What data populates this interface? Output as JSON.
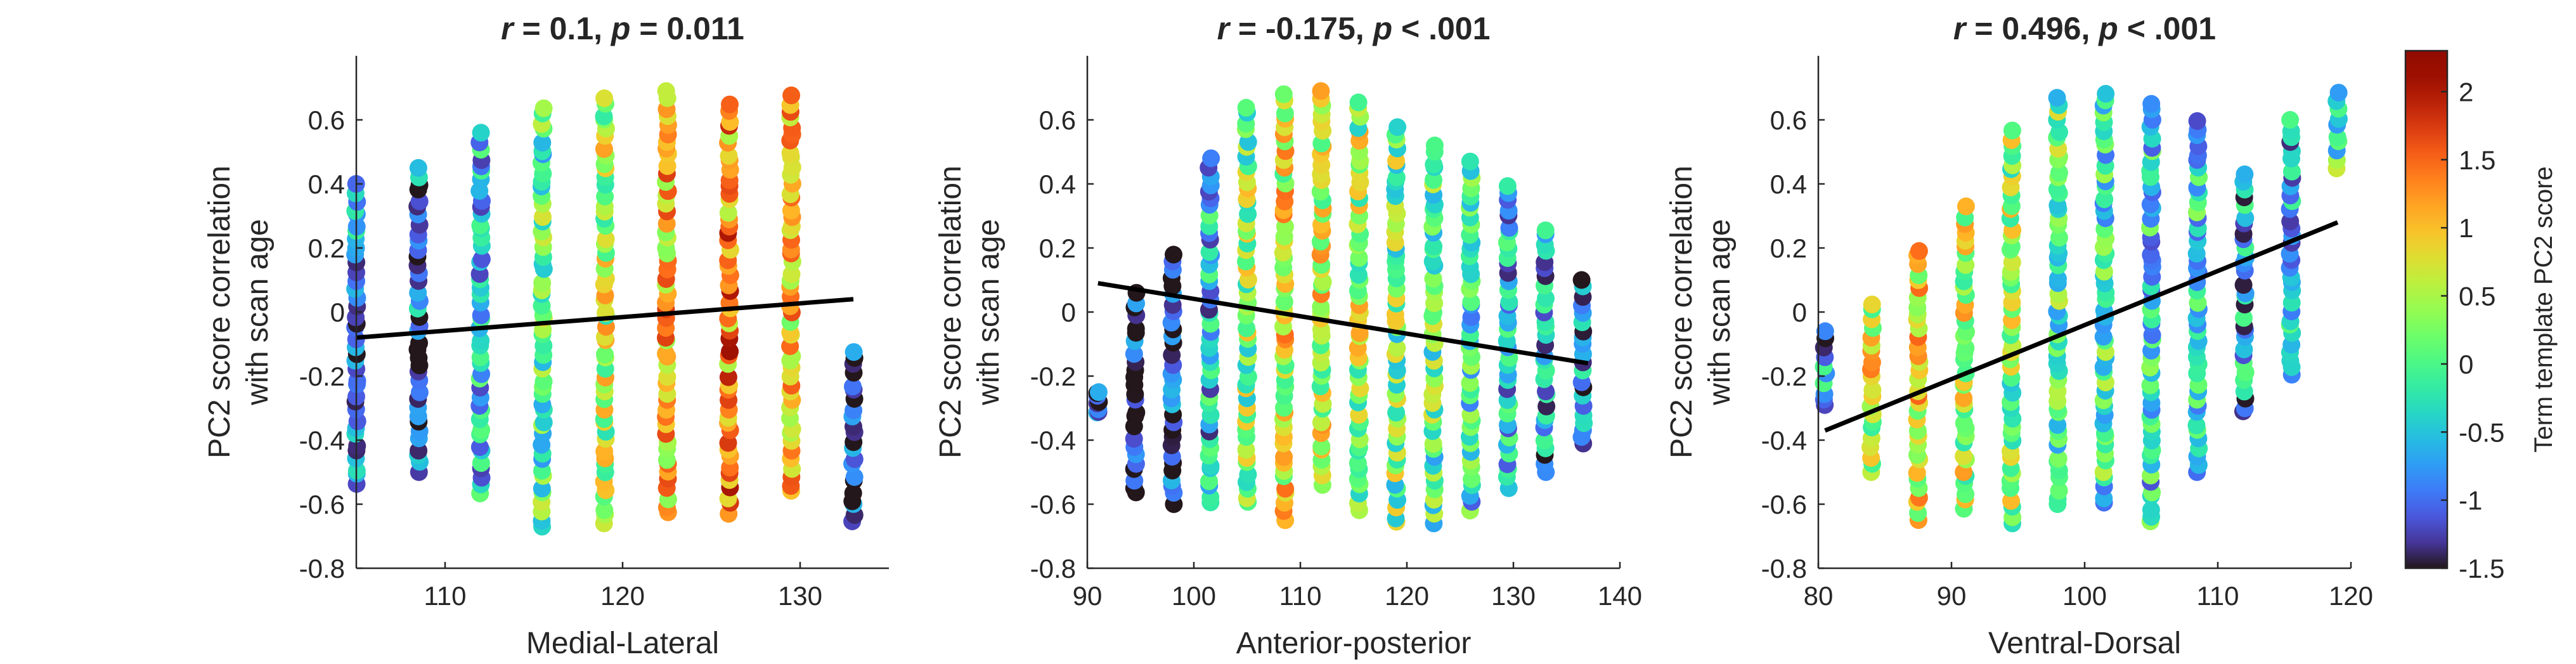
{
  "chart_data": [
    {
      "type": "scatter",
      "title_parts": [
        "r",
        " = 0.1, ",
        "p",
        " = 0.011"
      ],
      "xlabel": "Medial-Lateral",
      "ylabel": [
        "PC2 score correlation",
        "with scan age"
      ],
      "xlim": [
        105,
        135
      ],
      "ylim": [
        -0.8,
        0.8
      ],
      "xticks": [
        110,
        120,
        130
      ],
      "yticks": [
        -0.8,
        -0.6,
        -0.4,
        -0.2,
        0,
        0.2,
        0.4,
        0.6
      ],
      "ytick_labels": [
        "-0.8",
        "-0.6",
        "-0.4",
        "-0.2",
        "0",
        "0.2",
        "0.4",
        "0.6"
      ],
      "x_columns": [
        105,
        108.5,
        112,
        115.5,
        119,
        122.5,
        126,
        129.5,
        133
      ],
      "column_ranges": [
        [
          -0.54,
          0.4
        ],
        [
          -0.5,
          0.45
        ],
        [
          -0.57,
          0.56
        ],
        [
          -0.67,
          0.64
        ],
        [
          -0.66,
          0.67
        ],
        [
          -0.63,
          0.69
        ],
        [
          -0.63,
          0.65
        ],
        [
          -0.56,
          0.68
        ],
        [
          -0.66,
          -0.12
        ]
      ],
      "column_color_bias": [
        -0.9,
        -1.0,
        -0.5,
        0.0,
        0.5,
        1.1,
        1.3,
        0.9,
        -1.0
      ],
      "fit_line": {
        "x": [
          105,
          133
        ],
        "y": [
          -0.08,
          0.04
        ]
      },
      "grid": false
    },
    {
      "type": "scatter",
      "title_parts": [
        "r",
        " = -0.175, ",
        "p",
        " < .001"
      ],
      "xlabel": "Anterior-posterior",
      "ylabel": [
        "PC2 score correlation",
        "with scan age"
      ],
      "xlim": [
        90,
        140
      ],
      "ylim": [
        -0.8,
        0.8
      ],
      "xticks": [
        90,
        100,
        110,
        120,
        130,
        140
      ],
      "yticks": [
        -0.8,
        -0.6,
        -0.4,
        -0.2,
        0,
        0.2,
        0.4,
        0.6
      ],
      "ytick_labels": [
        "-0.8",
        "-0.6",
        "-0.4",
        "-0.2",
        "0",
        "0.2",
        "0.4",
        "0.6"
      ],
      "x_columns": [
        91,
        94.5,
        98,
        101.5,
        105,
        108.5,
        112,
        115.5,
        119,
        122.5,
        126,
        129.5,
        133,
        136.5
      ],
      "column_ranges": [
        [
          -0.32,
          -0.25
        ],
        [
          -0.57,
          0.06
        ],
        [
          -0.6,
          0.18
        ],
        [
          -0.6,
          0.48
        ],
        [
          -0.6,
          0.64
        ],
        [
          -0.65,
          0.68
        ],
        [
          -0.54,
          0.69
        ],
        [
          -0.62,
          0.66
        ],
        [
          -0.66,
          0.58
        ],
        [
          -0.66,
          0.52
        ],
        [
          -0.62,
          0.47
        ],
        [
          -0.55,
          0.4
        ],
        [
          -0.5,
          0.26
        ],
        [
          -0.42,
          0.1
        ]
      ],
      "column_color_bias": [
        -1.3,
        -1.4,
        -1.3,
        -0.6,
        0.3,
        0.7,
        0.6,
        0.4,
        0.2,
        0.0,
        -0.3,
        -0.6,
        -0.8,
        -0.9
      ],
      "fit_line": {
        "x": [
          91,
          137
        ],
        "y": [
          0.09,
          -0.16
        ]
      },
      "grid": false
    },
    {
      "type": "scatter",
      "title_parts": [
        "r",
        " = 0.496, ",
        "p",
        " < .001"
      ],
      "xlabel": "Ventral-Dorsal",
      "ylabel": [
        "PC2 score correlation",
        "with scan age"
      ],
      "xlim": [
        80,
        120
      ],
      "ylim": [
        -0.8,
        0.8
      ],
      "xticks": [
        80,
        90,
        100,
        110,
        120
      ],
      "yticks": [
        -0.8,
        -0.6,
        -0.4,
        -0.2,
        0,
        0.2,
        0.4,
        0.6
      ],
      "ytick_labels": [
        "-0.8",
        "-0.6",
        "-0.4",
        "-0.2",
        "0",
        "0.2",
        "0.4",
        "0.6"
      ],
      "x_columns": [
        80.5,
        84,
        87.5,
        91,
        94.5,
        98,
        101.5,
        105,
        108.5,
        112,
        115.5,
        119
      ],
      "column_ranges": [
        [
          -0.3,
          -0.06
        ],
        [
          -0.5,
          0.03
        ],
        [
          -0.65,
          0.2
        ],
        [
          -0.62,
          0.33
        ],
        [
          -0.66,
          0.57
        ],
        [
          -0.6,
          0.67
        ],
        [
          -0.6,
          0.69
        ],
        [
          -0.66,
          0.65
        ],
        [
          -0.5,
          0.6
        ],
        [
          -0.32,
          0.43
        ],
        [
          -0.2,
          0.6
        ],
        [
          0.44,
          0.69
        ]
      ],
      "column_color_bias": [
        -0.7,
        0.6,
        0.8,
        0.5,
        0.3,
        0.0,
        -0.2,
        -0.4,
        -0.4,
        -0.7,
        -0.6,
        0.0
      ],
      "fit_line": {
        "x": [
          80.5,
          119
        ],
        "y": [
          -0.37,
          0.28
        ]
      },
      "grid": false
    }
  ],
  "colorbar": {
    "label": "Term template PC2 score",
    "range": [
      -1.5,
      2.3
    ],
    "ticks": [
      -1.5,
      -1,
      -0.5,
      0,
      0.5,
      1,
      1.5,
      2
    ],
    "tick_labels": [
      "-1.5",
      "-1",
      "-0.5",
      "0",
      "0.5",
      "1",
      "1.5",
      "2"
    ],
    "colormap": "turbo"
  },
  "colors": {
    "axis": "#262626",
    "fit_line": "#000000"
  }
}
